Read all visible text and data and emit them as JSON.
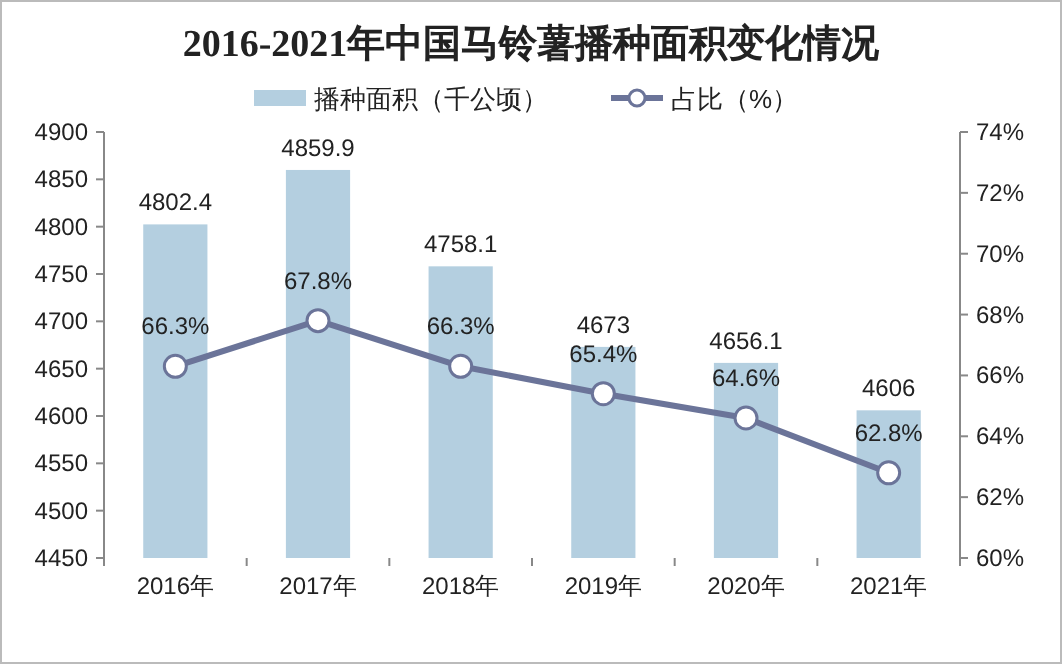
{
  "chart_data": {
    "type": "bar",
    "title": "2016-2021年中国马铃薯播种面积变化情况",
    "categories": [
      "2016年",
      "2017年",
      "2018年",
      "2019年",
      "2020年",
      "2021年"
    ],
    "series": [
      {
        "name": "播种面积（千公顷）",
        "color": "#b4cfe0",
        "values": [
          4802.4,
          4859.9,
          4758.1,
          4673,
          4656.1,
          4606
        ]
      },
      {
        "name": "占比（%）",
        "type": "line",
        "axis": "y2",
        "color": "#6b7499",
        "marker": "circle",
        "values": [
          66.3,
          67.8,
          66.3,
          65.4,
          64.6,
          62.8
        ],
        "value_labels": [
          "66.3%",
          "67.8%",
          "66.3%",
          "65.4%",
          "64.6%",
          "62.8%"
        ]
      }
    ],
    "ylim": [
      4450,
      4900
    ],
    "yticks": [
      4450,
      4500,
      4550,
      4600,
      4650,
      4700,
      4750,
      4800,
      4850,
      4900
    ],
    "y2lim": [
      60,
      74
    ],
    "y2ticks": [
      {
        "value": 60,
        "label": "60%"
      },
      {
        "value": 62,
        "label": "62%"
      },
      {
        "value": 64,
        "label": "64%"
      },
      {
        "value": 66,
        "label": "66%"
      },
      {
        "value": 68,
        "label": "68%"
      },
      {
        "value": 70,
        "label": "70%"
      },
      {
        "value": 72,
        "label": "72%"
      },
      {
        "value": 74,
        "label": "74%"
      }
    ],
    "data_labels": true,
    "legend": "top",
    "grid": false
  }
}
